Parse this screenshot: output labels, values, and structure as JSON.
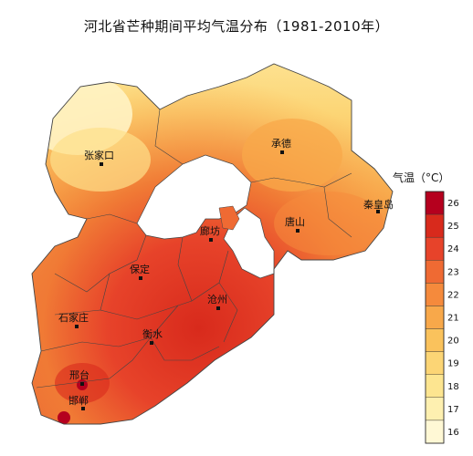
{
  "title": "河北省芒种期间平均气温分布（1981-2010年）",
  "legend": {
    "title": "气温（°C）",
    "ticks": [
      "26",
      "25",
      "24",
      "23",
      "22",
      "21",
      "20",
      "19",
      "18",
      "17",
      "16"
    ],
    "colors": [
      "#b5001e",
      "#d82a1c",
      "#e7432a",
      "#ef6a33",
      "#f58a3c",
      "#f8a84a",
      "#fac25c",
      "#fcd575",
      "#fde590",
      "#fef0b0",
      "#fff8d5"
    ]
  },
  "cities": [
    {
      "name": "张家口",
      "id": "zhangjiakou"
    },
    {
      "name": "承德",
      "id": "chengde"
    },
    {
      "name": "秦皇岛",
      "id": "qinhuangdao"
    },
    {
      "name": "唐山",
      "id": "tangshan"
    },
    {
      "name": "廊坊",
      "id": "langfang"
    },
    {
      "name": "保定",
      "id": "baoding"
    },
    {
      "name": "沧州",
      "id": "cangzhou"
    },
    {
      "name": "石家庄",
      "id": "shijiazhuang"
    },
    {
      "name": "衡水",
      "id": "hengshui"
    },
    {
      "name": "邢台",
      "id": "xingtai"
    },
    {
      "name": "邯郸",
      "id": "handan"
    }
  ]
}
